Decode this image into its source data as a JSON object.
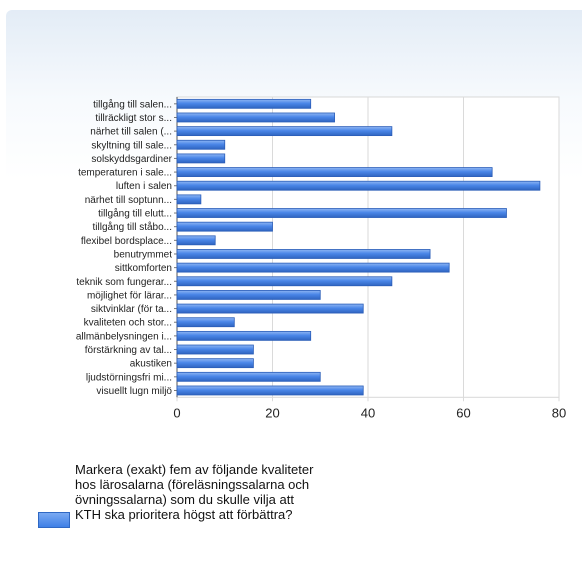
{
  "chart_data": {
    "type": "bar",
    "orientation": "horizontal",
    "categories": [
      "tillgång till salen...",
      "tillräckligt stor s...",
      "närhet till salen (...",
      "skyltning till sale...",
      "solskyddsgardiner",
      "temperaturen i sale...",
      "luften i salen",
      "närhet till soptunn...",
      "tillgång till elutt...",
      "tillgång till ståbo...",
      "flexibel bordsplace...",
      "benutrymmet",
      "sittkomforten",
      "teknik som fungerar...",
      "möjlighet för lärar...",
      "siktvinklar (för ta...",
      "kvaliteten och stor...",
      "allmänbelysningen i...",
      "förstärkning av tal...",
      "akustiken",
      "ljudstörningsfri mi...",
      "visuellt lugn miljö"
    ],
    "series": [
      {
        "name": "Markera (exakt) fem av följande kvaliteter hos lärosalarna (föreläsningssalarna och övningssalarna) som du skulle vilja att KTH ska prioritera högst att förbättra?",
        "values": [
          28,
          33,
          45,
          10,
          10,
          66,
          76,
          5,
          69,
          20,
          8,
          53,
          57,
          45,
          30,
          39,
          12,
          28,
          16,
          16,
          30,
          39
        ]
      }
    ],
    "xlim": [
      0,
      80
    ],
    "xticks": [
      "0",
      "20",
      "40",
      "60",
      "80"
    ],
    "grid": true,
    "legend_position": "bottom-left",
    "bar_color": "#4a86e8"
  }
}
